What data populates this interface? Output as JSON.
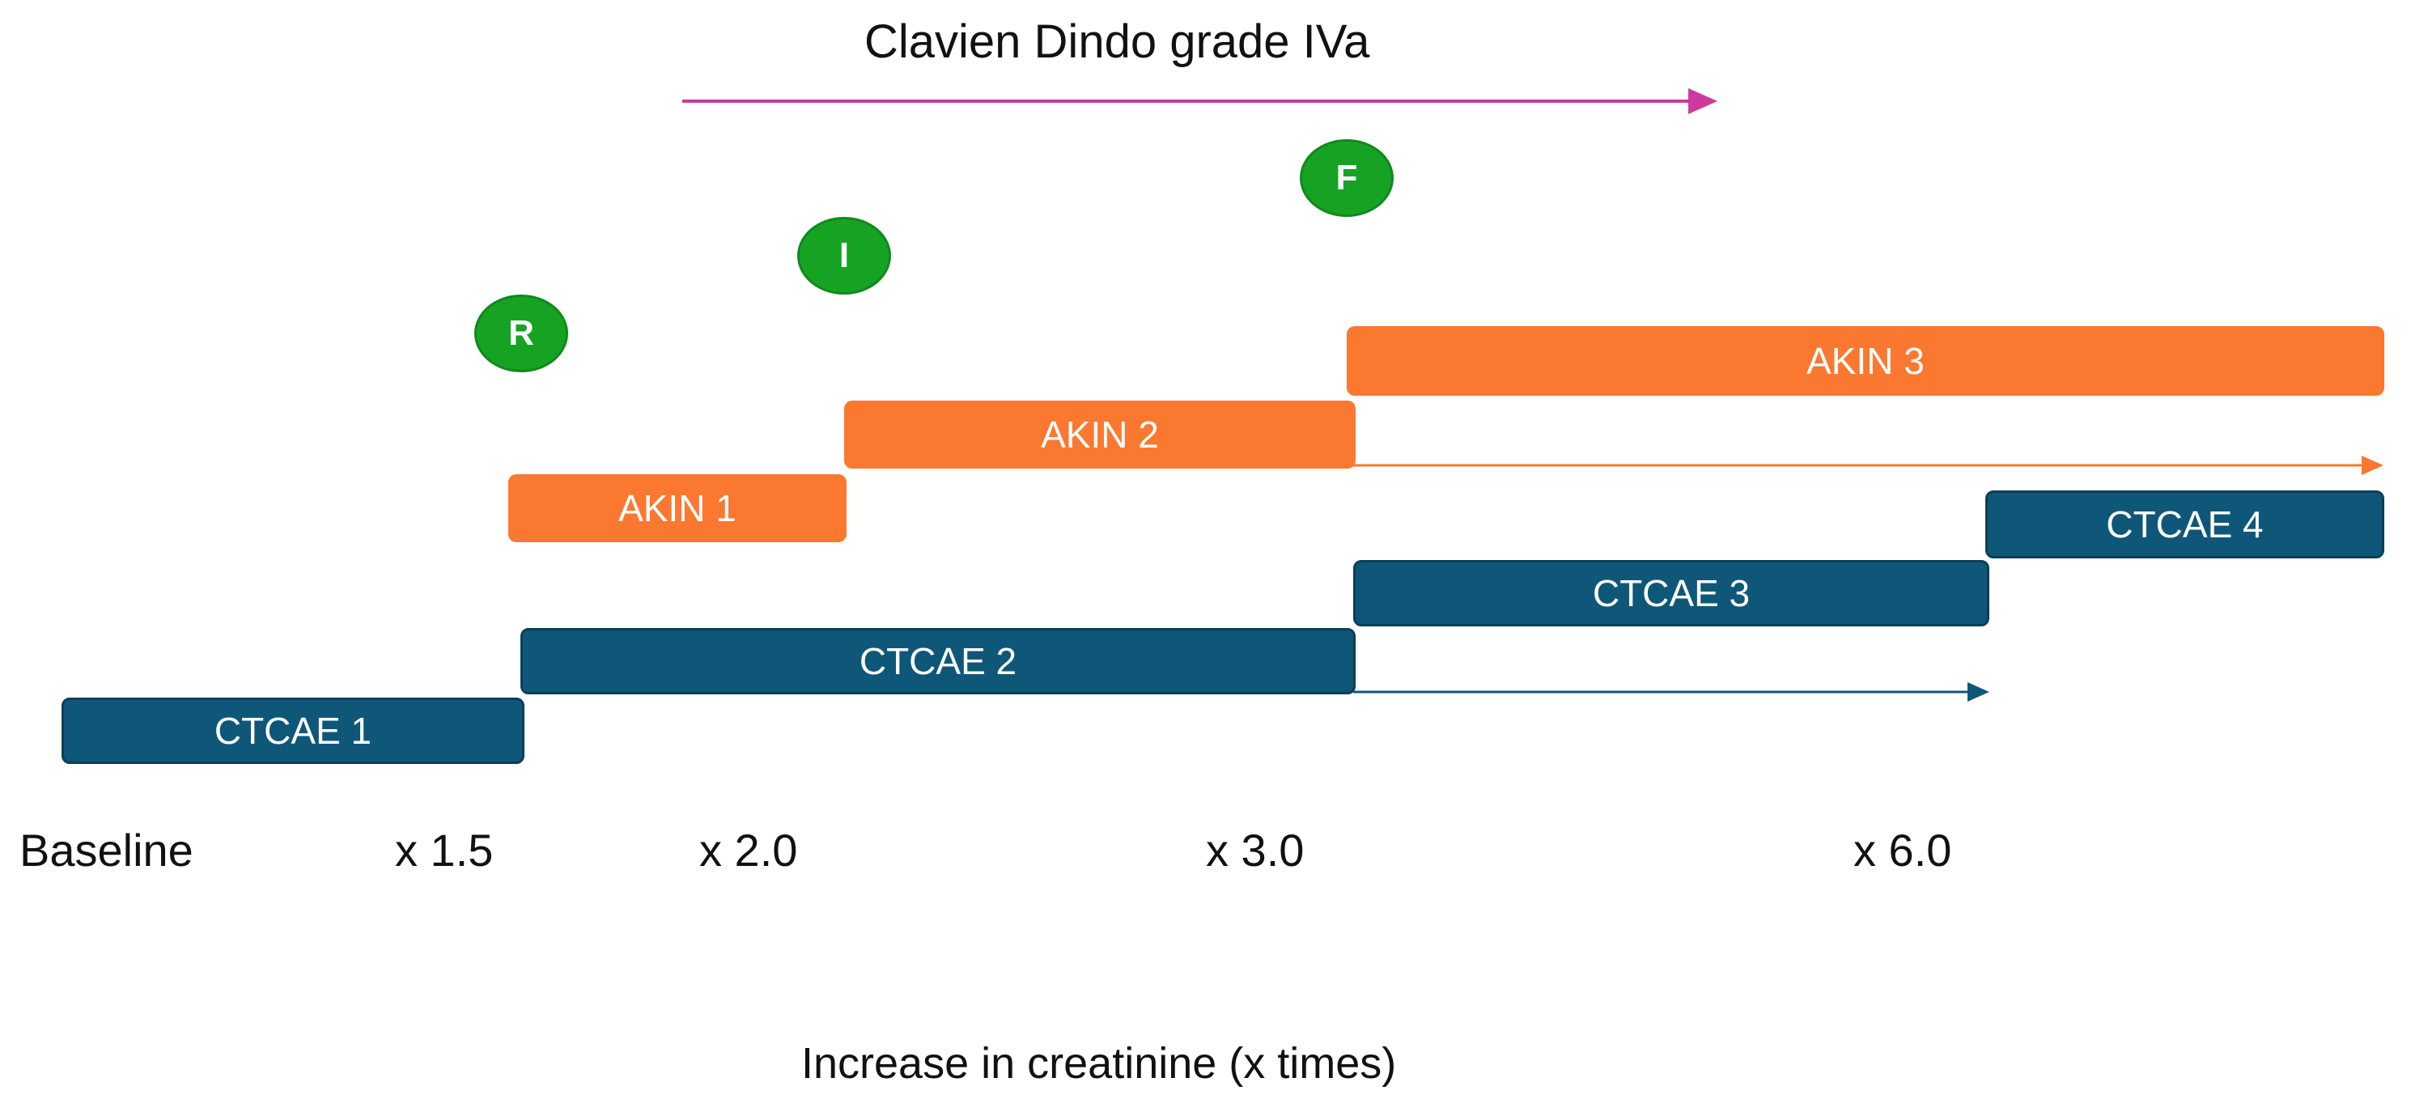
{
  "title": "Clavien Dindo grade IVa",
  "markers": [
    {
      "label": "R",
      "color": "#16a324"
    },
    {
      "label": "I",
      "color": "#16a324"
    },
    {
      "label": "F",
      "color": "#16a324"
    }
  ],
  "akin": [
    {
      "label": "AKIN 1",
      "color": "#fb7830"
    },
    {
      "label": "AKIN 2",
      "color": "#fb7830"
    },
    {
      "label": "AKIN 3",
      "color": "#fb7830"
    }
  ],
  "ctcae": [
    {
      "label": "CTCAE 1",
      "color": "#0f5779"
    },
    {
      "label": "CTCAE 2",
      "color": "#0f5779"
    },
    {
      "label": "CTCAE 3",
      "color": "#0f5779"
    },
    {
      "label": "CTCAE 4",
      "color": "#0f5779"
    }
  ],
  "x_ticks": [
    "Baseline",
    "x 1.5",
    "x 2.0",
    "x 3.0",
    "x 6.0"
  ],
  "x_axis_title": "Increase in creatinine (x times)",
  "colors": {
    "clavien_arrow": "#cc3a9e",
    "akin_arrow": "#fb7830",
    "ctcae_arrow": "#0f5779"
  }
}
